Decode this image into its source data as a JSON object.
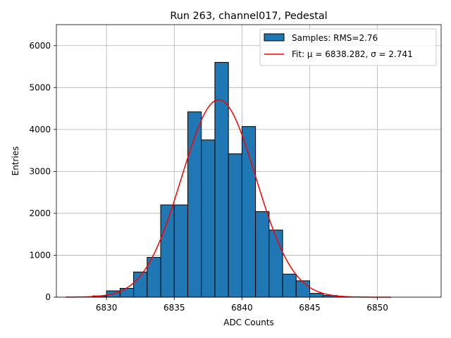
{
  "chart_data": {
    "type": "bar",
    "title": "Run 263, channel017, Pedestal",
    "xlabel": "ADC Counts",
    "ylabel": "Entries",
    "xlim": [
      6826.3,
      6854.7
    ],
    "ylim": [
      0,
      6500
    ],
    "x_ticks": [
      6830,
      6835,
      6840,
      6845,
      6850
    ],
    "y_ticks": [
      0,
      1000,
      2000,
      3000,
      4000,
      5000,
      6000
    ],
    "grid": true,
    "legend_position": "top-right",
    "bin_width": 1,
    "histogram": {
      "name": "Samples: RMS=2.76",
      "color": "#1f77b4",
      "edgecolor": "#000000",
      "bin_starts": [
        6829,
        6830,
        6831,
        6832,
        6833,
        6834,
        6835,
        6836,
        6837,
        6838,
        6839,
        6840,
        6841,
        6842,
        6843,
        6844,
        6845,
        6846,
        6847
      ],
      "values": [
        30,
        150,
        210,
        600,
        950,
        2200,
        2200,
        4420,
        3750,
        5600,
        3420,
        4070,
        2040,
        1600,
        550,
        390,
        90,
        40,
        10
      ]
    },
    "fit": {
      "name": "Fit: μ = 6838.282, σ = 2.741",
      "color": "#ff0000",
      "mu": 6838.282,
      "sigma": 2.741,
      "amplitude": 4710,
      "x_range": [
        6827,
        6851
      ]
    }
  }
}
